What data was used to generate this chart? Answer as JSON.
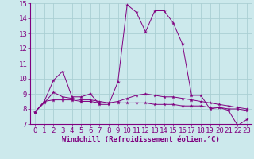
{
  "xlabel": "Windchill (Refroidissement éolien,°C)",
  "xlim": [
    -0.5,
    23.5
  ],
  "ylim": [
    7,
    15
  ],
  "xticks": [
    0,
    1,
    2,
    3,
    4,
    5,
    6,
    7,
    8,
    9,
    10,
    11,
    12,
    13,
    14,
    15,
    16,
    17,
    18,
    19,
    20,
    21,
    22,
    23
  ],
  "yticks": [
    7,
    8,
    9,
    10,
    11,
    12,
    13,
    14,
    15
  ],
  "bg_color": "#cce9ec",
  "line_color": "#800080",
  "grid_color": "#aacfd3",
  "tick_fontsize": 6.5,
  "xlabel_fontsize": 6.5,
  "series": [
    [
      7.8,
      8.5,
      9.9,
      10.5,
      8.8,
      8.8,
      9.0,
      8.3,
      8.3,
      9.8,
      14.9,
      14.4,
      13.1,
      14.5,
      14.5,
      13.7,
      12.3,
      8.9,
      8.9,
      8.0,
      8.1,
      7.9,
      6.9,
      7.3
    ],
    [
      7.8,
      8.5,
      8.6,
      8.6,
      8.6,
      8.5,
      8.5,
      8.4,
      8.4,
      8.4,
      8.4,
      8.4,
      8.4,
      8.3,
      8.3,
      8.3,
      8.2,
      8.2,
      8.2,
      8.1,
      8.1,
      8.0,
      8.0,
      7.9
    ],
    [
      7.8,
      8.4,
      9.1,
      8.8,
      8.7,
      8.6,
      8.6,
      8.5,
      8.4,
      8.5,
      8.7,
      8.9,
      9.0,
      8.9,
      8.8,
      8.8,
      8.7,
      8.6,
      8.5,
      8.4,
      8.3,
      8.2,
      8.1,
      8.0
    ]
  ]
}
